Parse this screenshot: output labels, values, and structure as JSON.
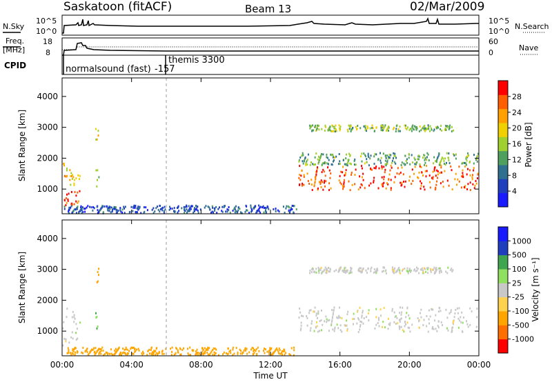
{
  "header": {
    "station": "Saskatoon (fitACF)",
    "beam": "Beam 13",
    "date": "02/Mar/2009"
  },
  "noise_panel": {
    "left_label": "N.Sky",
    "right_label": "N.Search",
    "left_ticks": [
      "10^5",
      "10^0"
    ],
    "right_ticks": [
      "10^5",
      "10^0"
    ]
  },
  "freq_panel": {
    "left_label_line1": "Freq.",
    "left_label_line2": "[MHz]",
    "right_label": "Nave",
    "left_ticks": [
      "18",
      "8"
    ],
    "right_ticks": [
      "60",
      "0"
    ]
  },
  "cpid_panel": {
    "label": "CPID",
    "mode1": "normalsound (fast)",
    "mode1_id": "-157",
    "mode2": "themis 3300"
  },
  "colors": {
    "power_scale": [
      "#1a1aff",
      "#1f3fbf",
      "#2f6f8f",
      "#4f9f5f",
      "#9fd02f",
      "#f0d000",
      "#ff9f00",
      "#ff5f00",
      "#ff0000"
    ],
    "velocity_scale": [
      "#ff0000",
      "#ff6f00",
      "#ffa500",
      "#ffd24d",
      "#c8c8c8",
      "#8fe05f",
      "#3fa64f",
      "#1f3fbf",
      "#1a1aff"
    ]
  },
  "chart_data": [
    {
      "type": "heatmap",
      "panel": "power",
      "ylabel": "Slant Range [km]",
      "y_ticks": [
        "1000",
        "2000",
        "3000",
        "4000"
      ],
      "ylim": [
        200,
        4600
      ],
      "colorbar_label": "Power [dB]",
      "colorbar_ticks": [
        "4",
        "8",
        "12",
        "16",
        "20",
        "24",
        "28"
      ],
      "colorbar_range": [
        0,
        30
      ],
      "regions": [
        {
          "t": [
            0.0,
            1.0
          ],
          "r": [
            1100,
            1900
          ],
          "value": 20
        },
        {
          "t": [
            0.1,
            1.0
          ],
          "r": [
            500,
            1000
          ],
          "value": 27
        },
        {
          "t": [
            1.9,
            2.1
          ],
          "r": [
            2600,
            3100
          ],
          "value": 18
        },
        {
          "t": [
            1.9,
            2.1
          ],
          "r": [
            1100,
            1700
          ],
          "value": 14
        },
        {
          "t": [
            13.6,
            24.0
          ],
          "r": [
            1000,
            1800
          ],
          "value": 26
        },
        {
          "t": [
            13.6,
            24.0
          ],
          "r": [
            1800,
            2200
          ],
          "value": 12
        },
        {
          "t": [
            14.2,
            22.5
          ],
          "r": [
            2900,
            3100
          ],
          "value": 14
        },
        {
          "t": [
            0.0,
            13.5
          ],
          "r": [
            250,
            500
          ],
          "value": 6
        }
      ]
    },
    {
      "type": "heatmap",
      "panel": "velocity",
      "ylabel": "Slant Range [km]",
      "xlabel": "Time UT",
      "x_ticks": [
        "00:00",
        "04:00",
        "08:00",
        "12:00",
        "16:00",
        "20:00",
        "00:00"
      ],
      "xlim": [
        0,
        24
      ],
      "y_ticks": [
        "1000",
        "2000",
        "3000",
        "4000"
      ],
      "ylim": [
        200,
        4600
      ],
      "colorbar_label": "Velocity [m s⁻¹]",
      "colorbar_ticks": [
        "-1000",
        "-500",
        "-100",
        "-25",
        "25",
        "100",
        "500",
        "1000"
      ],
      "regions": [
        {
          "t": [
            0.0,
            1.0
          ],
          "r": [
            500,
            1900
          ],
          "value": 0
        },
        {
          "t": [
            1.9,
            2.1
          ],
          "r": [
            2600,
            3100
          ],
          "value": -300
        },
        {
          "t": [
            1.9,
            2.1
          ],
          "r": [
            1100,
            1700
          ],
          "value": 80
        },
        {
          "t": [
            13.6,
            24.0
          ],
          "r": [
            1000,
            1800
          ],
          "value": 0
        },
        {
          "t": [
            14.2,
            22.5
          ],
          "r": [
            2900,
            3100
          ],
          "value": 0
        },
        {
          "t": [
            0.0,
            13.5
          ],
          "r": [
            250,
            500
          ],
          "value": -150
        }
      ]
    }
  ]
}
